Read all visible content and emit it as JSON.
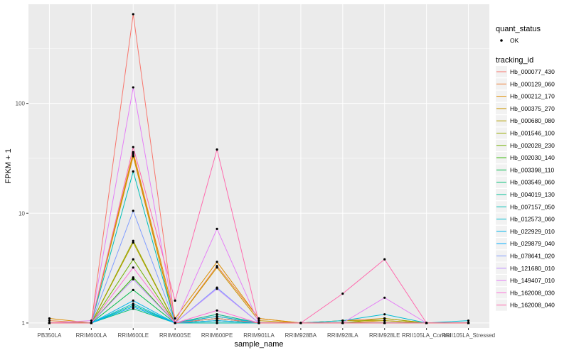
{
  "chart_data": {
    "type": "line",
    "xlabel": "sample_name",
    "ylabel": "FPKM + 1",
    "y_scale": "log10",
    "ylim": [
      0.9,
      800
    ],
    "y_ticks": [
      {
        "value": 1,
        "label": "1"
      },
      {
        "value": 10,
        "label": "10"
      },
      {
        "value": 100,
        "label": "100"
      }
    ],
    "categories": [
      "PB350LA",
      "RRIM600LA",
      "RRIM600LE",
      "RRIM600SE",
      "RRIM600PE",
      "RRIM901LA",
      "RRIM928BA",
      "RRIM928LA",
      "RRIM928LE",
      "RRII105LA_Control",
      "RRII105LA_Stressed"
    ],
    "grid": true,
    "legend_position": "right",
    "series": [
      {
        "name": "Hb_000077_430",
        "color": "#F8766D",
        "values": [
          1.0,
          1.0,
          34.0,
          1.0,
          1.2,
          1.0,
          1.0,
          1.0,
          1.0,
          1.0,
          1.0
        ]
      },
      {
        "name": "Hb_000129_060",
        "color": "#EC823C",
        "values": [
          1.05,
          1.0,
          35.0,
          1.0,
          3.3,
          1.1,
          1.0,
          1.05,
          1.1,
          1.0,
          1.0
        ]
      },
      {
        "name": "Hb_000212_170",
        "color": "#DD8D00",
        "values": [
          1.1,
          1.0,
          36.0,
          1.1,
          3.6,
          1.1,
          1.0,
          1.0,
          1.05,
          1.0,
          1.0
        ]
      },
      {
        "name": "Hb_000375_270",
        "color": "#CA9700",
        "values": [
          1.0,
          1.0,
          33.0,
          1.0,
          3.2,
          1.05,
          1.0,
          1.0,
          1.0,
          1.0,
          1.0
        ]
      },
      {
        "name": "Hb_000680_080",
        "color": "#B3A000",
        "values": [
          1.0,
          1.0,
          5.4,
          1.0,
          1.15,
          1.0,
          1.0,
          1.05,
          1.05,
          1.0,
          1.0
        ]
      },
      {
        "name": "Hb_001546_100",
        "color": "#97A900",
        "values": [
          1.0,
          1.0,
          5.6,
          1.0,
          1.1,
          1.0,
          1.0,
          1.0,
          1.1,
          1.0,
          1.0
        ]
      },
      {
        "name": "Hb_002028_230",
        "color": "#71B000",
        "values": [
          1.0,
          1.0,
          3.8,
          1.0,
          1.05,
          1.0,
          1.0,
          1.0,
          1.0,
          1.0,
          1.0
        ]
      },
      {
        "name": "Hb_002030_140",
        "color": "#2FB600",
        "values": [
          1.0,
          1.0,
          2.6,
          1.0,
          1.1,
          1.0,
          1.0,
          1.0,
          1.0,
          1.0,
          1.0
        ]
      },
      {
        "name": "Hb_003398_110",
        "color": "#00BB4B",
        "values": [
          1.0,
          1.0,
          2.0,
          1.0,
          1.05,
          1.0,
          1.0,
          1.0,
          1.0,
          1.0,
          1.0
        ]
      },
      {
        "name": "Hb_003549_060",
        "color": "#00BF76",
        "values": [
          1.0,
          1.0,
          1.35,
          1.0,
          1.0,
          1.0,
          1.0,
          1.0,
          1.0,
          1.0,
          1.0
        ]
      },
      {
        "name": "Hb_004019_130",
        "color": "#00C098",
        "values": [
          1.0,
          1.0,
          1.45,
          1.0,
          1.2,
          1.0,
          1.0,
          1.0,
          1.0,
          1.0,
          1.0
        ]
      },
      {
        "name": "Hb_007157_050",
        "color": "#00BFB7",
        "values": [
          1.0,
          1.0,
          24.0,
          1.0,
          1.0,
          1.0,
          1.0,
          1.0,
          1.0,
          1.0,
          1.0
        ]
      },
      {
        "name": "Hb_012573_060",
        "color": "#00BCD3",
        "values": [
          1.0,
          1.0,
          1.5,
          1.0,
          1.1,
          1.0,
          1.0,
          1.05,
          1.2,
          1.0,
          1.05
        ]
      },
      {
        "name": "Hb_022929_010",
        "color": "#00B5EB",
        "values": [
          1.0,
          1.0,
          1.6,
          1.0,
          1.15,
          1.0,
          1.0,
          1.0,
          1.0,
          1.0,
          1.0
        ]
      },
      {
        "name": "Hb_029879_040",
        "color": "#00ABFD",
        "values": [
          1.0,
          1.0,
          1.4,
          1.0,
          1.05,
          1.0,
          1.0,
          1.0,
          1.0,
          1.0,
          1.0
        ]
      },
      {
        "name": "Hb_078641_020",
        "color": "#7F9CFF",
        "values": [
          1.0,
          1.0,
          10.5,
          1.0,
          2.1,
          1.0,
          1.0,
          1.0,
          1.0,
          1.0,
          1.0
        ]
      },
      {
        "name": "Hb_121680_010",
        "color": "#C08FFF",
        "values": [
          1.0,
          1.0,
          2.5,
          1.0,
          2.05,
          1.0,
          1.0,
          1.0,
          1.0,
          1.0,
          1.0
        ]
      },
      {
        "name": "Hb_149407_010",
        "color": "#E57FF6",
        "values": [
          1.0,
          1.05,
          140.0,
          1.0,
          7.2,
          1.0,
          1.0,
          1.0,
          1.7,
          1.0,
          1.0
        ]
      },
      {
        "name": "Hb_162008_030",
        "color": "#FC71D8",
        "values": [
          1.0,
          1.0,
          3.2,
          1.0,
          1.3,
          1.0,
          1.0,
          1.0,
          1.0,
          1.0,
          1.0
        ]
      },
      {
        "name": "Hb_162008_040",
        "color": "#FF6BAE",
        "values": [
          1.0,
          1.0,
          40.0,
          1.6,
          38.0,
          1.0,
          1.0,
          1.85,
          3.8,
          1.0,
          1.0
        ]
      },
      {
        "name": "",
        "color": "#F8766D",
        "values": [
          1.0,
          1.0,
          650.0,
          1.0,
          1.1,
          1.0,
          1.0,
          1.0,
          1.0,
          1.0,
          1.0
        ]
      }
    ],
    "legends": {
      "quant_status": {
        "title": "quant_status",
        "entries": [
          "OK"
        ]
      },
      "tracking_id": {
        "title": "tracking_id"
      }
    }
  }
}
